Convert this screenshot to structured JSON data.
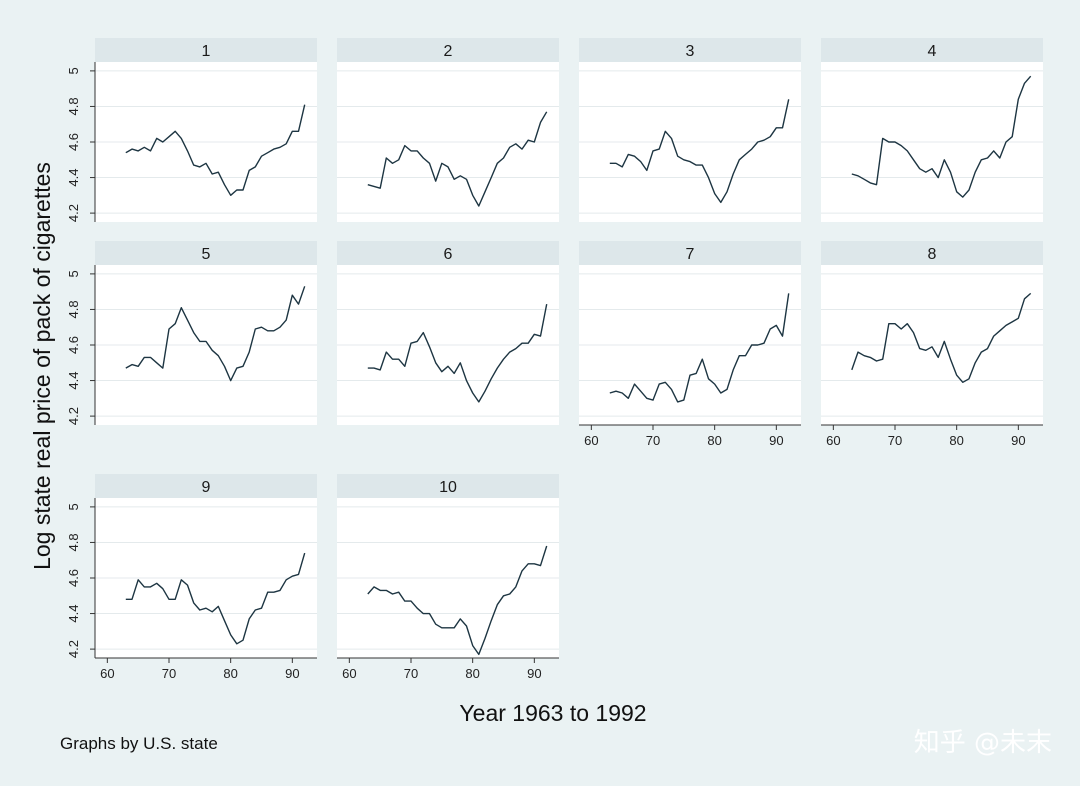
{
  "chart_data": {
    "type": "line",
    "layout": "small-multiples",
    "ylabel": "Log state real price of pack of cigarettes",
    "xlabel": "Year 1963 to 1992",
    "note": "Graphs by U.S. state",
    "x_ticks": [
      60,
      70,
      80,
      90
    ],
    "y_ticks": [
      4.2,
      4.4,
      4.6,
      4.8,
      5
    ],
    "y_tick_labels": [
      "4.2",
      "4.4",
      "4.6",
      "4.8",
      "5"
    ],
    "x_range": [
      58,
      94
    ],
    "y_range": [
      4.15,
      5.05
    ],
    "grid": true,
    "x": [
      63,
      64,
      65,
      66,
      67,
      68,
      69,
      70,
      71,
      72,
      73,
      74,
      75,
      76,
      77,
      78,
      79,
      80,
      81,
      82,
      83,
      84,
      85,
      86,
      87,
      88,
      89,
      90,
      91,
      92
    ],
    "panels": [
      {
        "label": "1",
        "values": [
          4.54,
          4.56,
          4.55,
          4.57,
          4.55,
          4.62,
          4.6,
          4.63,
          4.66,
          4.62,
          4.55,
          4.47,
          4.46,
          4.48,
          4.42,
          4.43,
          4.36,
          4.3,
          4.33,
          4.33,
          4.44,
          4.46,
          4.52,
          4.54,
          4.56,
          4.57,
          4.59,
          4.66,
          4.66,
          4.81
        ]
      },
      {
        "label": "2",
        "values": [
          4.36,
          4.35,
          4.34,
          4.51,
          4.48,
          4.5,
          4.58,
          4.55,
          4.55,
          4.51,
          4.48,
          4.38,
          4.48,
          4.46,
          4.39,
          4.41,
          4.39,
          4.3,
          4.24,
          4.32,
          4.4,
          4.48,
          4.51,
          4.57,
          4.59,
          4.56,
          4.61,
          4.6,
          4.71,
          4.77
        ]
      },
      {
        "label": "3",
        "values": [
          4.48,
          4.48,
          4.46,
          4.53,
          4.52,
          4.49,
          4.44,
          4.55,
          4.56,
          4.66,
          4.62,
          4.52,
          4.5,
          4.49,
          4.47,
          4.47,
          4.4,
          4.31,
          4.26,
          4.32,
          4.42,
          4.5,
          4.53,
          4.56,
          4.6,
          4.61,
          4.63,
          4.68,
          4.68,
          4.84
        ]
      },
      {
        "label": "4",
        "values": [
          4.42,
          4.41,
          4.39,
          4.37,
          4.36,
          4.62,
          4.6,
          4.6,
          4.58,
          4.55,
          4.5,
          4.45,
          4.43,
          4.45,
          4.4,
          4.5,
          4.43,
          4.32,
          4.29,
          4.33,
          4.43,
          4.5,
          4.51,
          4.55,
          4.51,
          4.6,
          4.63,
          4.84,
          4.93,
          4.97
        ]
      },
      {
        "label": "5",
        "values": [
          4.47,
          4.49,
          4.48,
          4.53,
          4.53,
          4.5,
          4.47,
          4.69,
          4.72,
          4.81,
          4.74,
          4.67,
          4.62,
          4.62,
          4.57,
          4.54,
          4.48,
          4.4,
          4.47,
          4.48,
          4.56,
          4.69,
          4.7,
          4.68,
          4.68,
          4.7,
          4.74,
          4.88,
          4.83,
          4.93
        ]
      },
      {
        "label": "6",
        "values": [
          4.47,
          4.47,
          4.46,
          4.56,
          4.52,
          4.52,
          4.48,
          4.61,
          4.62,
          4.67,
          4.59,
          4.5,
          4.45,
          4.48,
          4.44,
          4.5,
          4.4,
          4.33,
          4.28,
          4.34,
          4.41,
          4.47,
          4.52,
          4.56,
          4.58,
          4.61,
          4.61,
          4.66,
          4.65,
          4.83
        ]
      },
      {
        "label": "7",
        "values": [
          4.33,
          4.34,
          4.33,
          4.3,
          4.38,
          4.34,
          4.3,
          4.29,
          4.38,
          4.39,
          4.35,
          4.28,
          4.29,
          4.43,
          4.44,
          4.52,
          4.41,
          4.38,
          4.33,
          4.35,
          4.46,
          4.54,
          4.54,
          4.6,
          4.6,
          4.61,
          4.69,
          4.71,
          4.65,
          4.89
        ]
      },
      {
        "label": "8",
        "values": [
          4.46,
          4.56,
          4.54,
          4.53,
          4.51,
          4.52,
          4.72,
          4.72,
          4.69,
          4.72,
          4.67,
          4.58,
          4.57,
          4.59,
          4.53,
          4.62,
          4.52,
          4.43,
          4.39,
          4.41,
          4.5,
          4.56,
          4.58,
          4.65,
          4.68,
          4.71,
          4.73,
          4.75,
          4.86,
          4.89
        ]
      },
      {
        "label": "9",
        "values": [
          4.48,
          4.48,
          4.59,
          4.55,
          4.55,
          4.57,
          4.54,
          4.48,
          4.48,
          4.59,
          4.56,
          4.46,
          4.42,
          4.43,
          4.41,
          4.44,
          4.36,
          4.28,
          4.23,
          4.25,
          4.37,
          4.42,
          4.43,
          4.52,
          4.52,
          4.53,
          4.59,
          4.61,
          4.62,
          4.74
        ]
      },
      {
        "label": "10",
        "values": [
          4.51,
          4.55,
          4.53,
          4.53,
          4.51,
          4.52,
          4.47,
          4.47,
          4.43,
          4.4,
          4.4,
          4.34,
          4.32,
          4.32,
          4.32,
          4.37,
          4.33,
          4.22,
          4.17,
          4.26,
          4.36,
          4.45,
          4.5,
          4.51,
          4.55,
          4.64,
          4.68,
          4.68,
          4.67,
          4.78
        ]
      }
    ]
  },
  "watermark": "知乎 @未末"
}
